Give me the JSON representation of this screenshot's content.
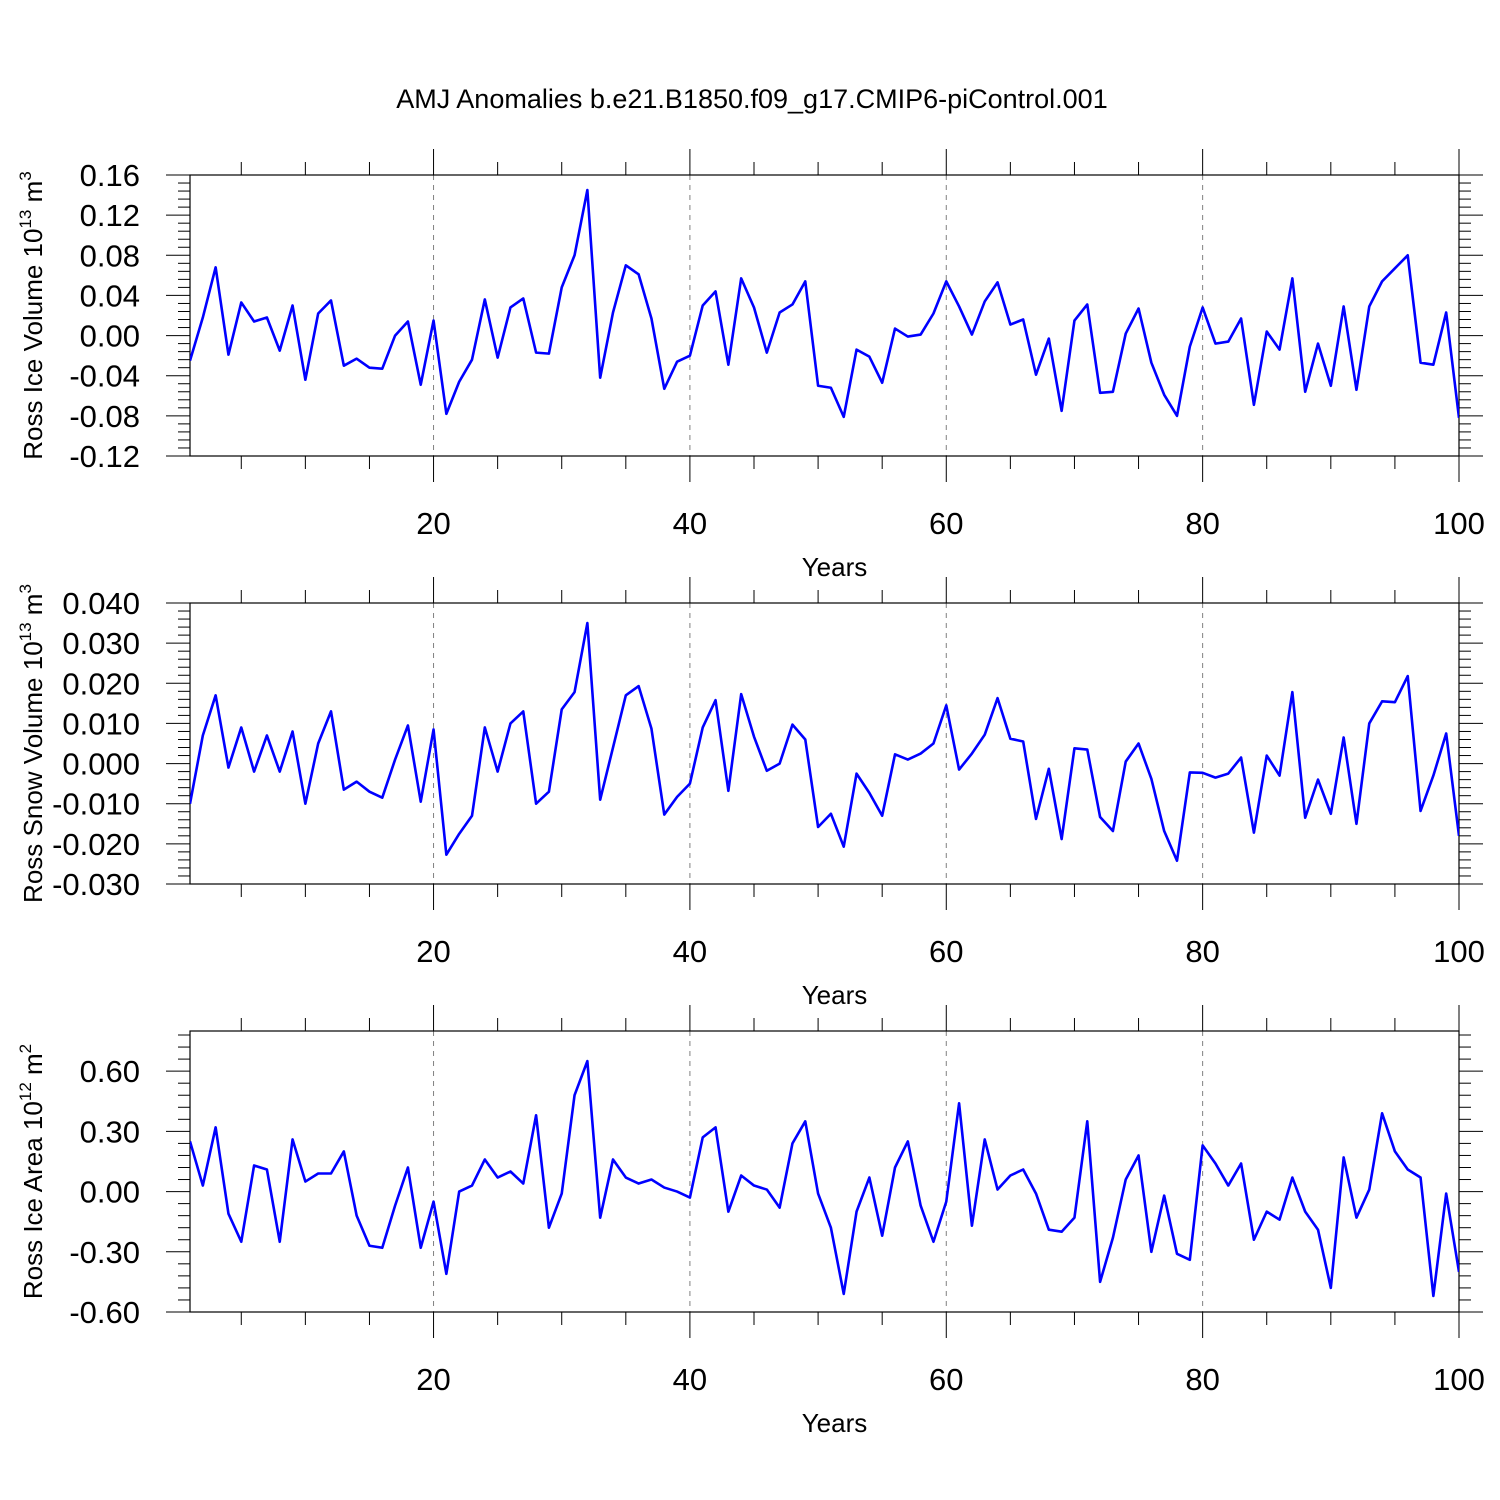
{
  "title": "AMJ Anomalies b.e21.B1850.f09_g17.CMIP6-piControl.001",
  "colors": {
    "series": "#0000ff",
    "axes": "#000000",
    "grid": "#808080"
  },
  "chart_data": [
    {
      "type": "line",
      "title": "",
      "xlabel": "Years",
      "ylabel": "Ross Ice Volume 10",
      "ylabel_exp": "13",
      "ylabel_unit": "m",
      "ylabel_unit_exp": "3",
      "xlim": [
        1,
        100
      ],
      "ylim": [
        -0.12,
        0.16
      ],
      "xticks": [
        20,
        40,
        60,
        80,
        100
      ],
      "xtick_labels": [
        "20",
        "40",
        "60",
        "80",
        "100"
      ],
      "yticks": [
        -0.12,
        -0.08,
        -0.04,
        0.0,
        0.04,
        0.08,
        0.12,
        0.16
      ],
      "ytick_labels": [
        "-0.12",
        "-0.08",
        "-0.04",
        "0.00",
        "0.04",
        "0.08",
        "0.12",
        "0.16"
      ],
      "grid": "vertical dashed at x ticks",
      "series": [
        {
          "color": "#0000ff",
          "x_start": 1,
          "values": [
            -0.025,
            0.018,
            0.068,
            -0.019,
            0.033,
            0.014,
            0.018,
            -0.015,
            0.03,
            -0.044,
            0.022,
            0.035,
            -0.03,
            -0.023,
            -0.032,
            -0.033,
            0.0,
            0.014,
            -0.049,
            0.015,
            -0.078,
            -0.046,
            -0.024,
            0.036,
            -0.022,
            0.028,
            0.037,
            -0.017,
            -0.018,
            0.048,
            0.08,
            0.145,
            -0.042,
            0.023,
            0.07,
            0.061,
            0.017,
            -0.053,
            -0.026,
            -0.02,
            0.03,
            0.044,
            -0.029,
            0.057,
            0.028,
            -0.017,
            0.023,
            0.031,
            0.054,
            -0.05,
            -0.052,
            -0.081,
            -0.014,
            -0.021,
            -0.047,
            0.007,
            -0.001,
            0.001,
            0.022,
            0.054,
            0.029,
            0.001,
            0.034,
            0.053,
            0.011,
            0.016,
            -0.039,
            -0.003,
            -0.075,
            0.015,
            0.031,
            -0.057,
            -0.056,
            0.002,
            0.027,
            -0.027,
            -0.059,
            -0.08,
            -0.011,
            0.028,
            -0.008,
            -0.006,
            0.017,
            -0.069,
            0.004,
            -0.014,
            0.057,
            -0.056,
            -0.008,
            -0.05,
            0.029,
            -0.054,
            0.029,
            0.054,
            0.067,
            0.08,
            -0.027,
            -0.029,
            0.023,
            -0.082
          ]
        }
      ]
    },
    {
      "type": "line",
      "title": "",
      "xlabel": "Years",
      "ylabel": "Ross Snow Volume 10",
      "ylabel_exp": "13",
      "ylabel_unit": "m",
      "ylabel_unit_exp": "3",
      "xlim": [
        1,
        100
      ],
      "ylim": [
        -0.03,
        0.04
      ],
      "xticks": [
        20,
        40,
        60,
        80,
        100
      ],
      "xtick_labels": [
        "20",
        "40",
        "60",
        "80",
        "100"
      ],
      "yticks": [
        -0.03,
        -0.02,
        -0.01,
        0.0,
        0.01,
        0.02,
        0.03,
        0.04
      ],
      "ytick_labels": [
        "-0.030",
        "-0.020",
        "-0.010",
        "0.000",
        "0.010",
        "0.020",
        "0.030",
        "0.040"
      ],
      "grid": "vertical dashed at x ticks",
      "series": [
        {
          "color": "#0000ff",
          "x_start": 1,
          "values": [
            -0.01,
            0.007,
            0.017,
            -0.001,
            0.009,
            -0.002,
            0.007,
            -0.002,
            0.008,
            -0.01,
            0.005,
            0.013,
            -0.0065,
            -0.0045,
            -0.007,
            -0.0085,
            0.001,
            0.0095,
            -0.0095,
            0.0085,
            -0.0227,
            -0.0175,
            -0.013,
            0.009,
            -0.002,
            0.01,
            0.013,
            -0.01,
            -0.007,
            0.0135,
            0.0178,
            0.035,
            -0.009,
            0.004,
            0.017,
            0.0193,
            0.0087,
            -0.0127,
            -0.0083,
            -0.005,
            0.009,
            0.0158,
            -0.0068,
            0.0173,
            0.0067,
            -0.0018,
            0.0,
            0.0097,
            0.006,
            -0.0158,
            -0.0125,
            -0.0207,
            -0.0025,
            -0.0073,
            -0.013,
            0.0023,
            0.001,
            0.0025,
            0.005,
            0.0145,
            -0.0015,
            0.0025,
            0.0072,
            0.0163,
            0.0062,
            0.0055,
            -0.0138,
            -0.0013,
            -0.0188,
            0.0038,
            0.0035,
            -0.0133,
            -0.0168,
            0.0005,
            0.005,
            -0.0038,
            -0.0168,
            -0.0242,
            -0.0022,
            -0.0023,
            -0.0035,
            -0.0025,
            0.0015,
            -0.0172,
            0.002,
            -0.003,
            0.0178,
            -0.0135,
            -0.004,
            -0.0125,
            0.0065,
            -0.015,
            0.01,
            0.0155,
            0.0153,
            0.0218,
            -0.0118,
            -0.003,
            0.0075,
            -0.018
          ]
        }
      ]
    },
    {
      "type": "line",
      "title": "",
      "xlabel": "Years",
      "ylabel": "Ross Ice Area 10",
      "ylabel_exp": "12",
      "ylabel_unit": "m",
      "ylabel_unit_exp": "2",
      "xlim": [
        1,
        100
      ],
      "ylim": [
        -0.6,
        0.8
      ],
      "xticks": [
        20,
        40,
        60,
        80,
        100
      ],
      "xtick_labels": [
        "20",
        "40",
        "60",
        "80",
        "100"
      ],
      "yticks": [
        -0.6,
        -0.3,
        0.0,
        0.3,
        0.6
      ],
      "ytick_labels": [
        "-0.60",
        "-0.30",
        "0.00",
        "0.30",
        "0.60"
      ],
      "grid": "vertical dashed at x ticks",
      "series": [
        {
          "color": "#0000ff",
          "x_start": 1,
          "values": [
            0.25,
            0.03,
            0.32,
            -0.11,
            -0.25,
            0.13,
            0.11,
            -0.25,
            0.26,
            0.05,
            0.09,
            0.09,
            0.2,
            -0.12,
            -0.27,
            -0.28,
            -0.07,
            0.12,
            -0.28,
            -0.05,
            -0.41,
            0.0,
            0.03,
            0.16,
            0.07,
            0.1,
            0.04,
            0.38,
            -0.18,
            -0.01,
            0.48,
            0.65,
            -0.13,
            0.16,
            0.07,
            0.04,
            0.06,
            0.02,
            0.0,
            -0.03,
            0.27,
            0.32,
            -0.1,
            0.08,
            0.03,
            0.01,
            -0.08,
            0.24,
            0.35,
            -0.01,
            -0.18,
            -0.51,
            -0.1,
            0.07,
            -0.22,
            0.12,
            0.25,
            -0.07,
            -0.25,
            -0.05,
            0.44,
            -0.17,
            0.26,
            0.01,
            0.08,
            0.11,
            -0.01,
            -0.19,
            -0.2,
            -0.13,
            0.35,
            -0.45,
            -0.23,
            0.06,
            0.18,
            -0.3,
            -0.02,
            -0.31,
            -0.34,
            0.23,
            0.14,
            0.03,
            0.14,
            -0.24,
            -0.1,
            -0.14,
            0.07,
            -0.1,
            -0.19,
            -0.48,
            0.17,
            -0.13,
            0.01,
            0.39,
            0.2,
            0.11,
            0.07,
            -0.52,
            -0.01,
            -0.4
          ]
        }
      ]
    }
  ]
}
